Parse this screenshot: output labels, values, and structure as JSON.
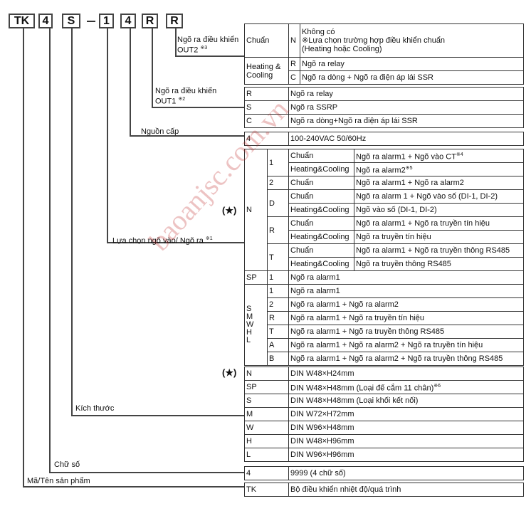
{
  "code": [
    "TK",
    "4",
    "S",
    "1",
    "4",
    "R",
    "R"
  ],
  "labels": {
    "out2": "Ngõ ra điều khiển",
    "out2_b": "OUT2",
    "out2_note": "※3",
    "out1": "Ngõ ra điều khiển",
    "out1_b": "OUT1",
    "out1_note": "※2",
    "power": "Nguồn cấp",
    "io": "Lựa chọn ngõ vào/ Ngõ ra",
    "io_note": "※1",
    "size": "Kích thước",
    "digits": "Chữ số",
    "product": "Mã/Tên sản phẩm",
    "star": "(★)"
  },
  "out2_table": {
    "standard": "Chuẩn",
    "n": "N",
    "n_line1": "Không có",
    "n_line2": "※Lựa chọn trường hợp điều khiển chuẩn",
    "n_line3": "(Heating hoặc Cooling)",
    "hc_line1": "Heating &",
    "hc_line2": "Cooling",
    "r": "R",
    "r_desc": "Ngõ ra relay",
    "c": "C",
    "c_desc": "Ngõ ra dòng + Ngõ ra điện áp lái SSR"
  },
  "out1_table": [
    {
      "code": "R",
      "desc": "Ngõ ra relay"
    },
    {
      "code": "S",
      "desc": "Ngõ ra SSRP"
    },
    {
      "code": "C",
      "desc": "Ngõ ra dòng+Ngõ ra điện áp lái SSR"
    }
  ],
  "power_table": {
    "code": "4",
    "desc": "100-240VAC 50/60Hz"
  },
  "io_table": {
    "n": "N",
    "std": "Chuẩn",
    "hc": "Heating&Cooling",
    "rows": {
      "c1": "1",
      "c1_std": "Ngõ ra alarm1 + Ngõ vào CT",
      "c1_std_note": "※4",
      "c1_hc": "Ngõ ra alarm2",
      "c1_hc_note": "※5",
      "c2": "2",
      "c2_std": "Ngõ ra alarm1 + Ngõ ra alarm2",
      "cD": "D",
      "cD_std": "Ngõ ra alarm 1 + Ngõ vào số (DI-1, DI-2)",
      "cD_hc": "Ngõ vào số (DI-1, DI-2)",
      "cR": "R",
      "cR_std": "Ngõ ra alarm1 + Ngõ ra truyền tín hiệu",
      "cR_hc": "Ngõ ra truyền tín hiệu",
      "cT": "T",
      "cT_std": "Ngõ ra alarm1 + Ngõ ra truyền thông RS485",
      "cT_hc": "Ngõ ra truyền thông RS485"
    },
    "sp": "SP",
    "sp_code": "1",
    "sp_desc": "Ngõ ra alarm1",
    "group_lines": [
      "S",
      "M",
      "W",
      "H",
      "L"
    ],
    "group_rows": [
      {
        "code": "1",
        "desc": "Ngõ ra alarm1"
      },
      {
        "code": "2",
        "desc": "Ngõ ra alarm1 + Ngõ ra alarm2"
      },
      {
        "code": "R",
        "desc": "Ngõ ra alarm1 + Ngõ ra truyền tín hiệu"
      },
      {
        "code": "T",
        "desc": "Ngõ ra alarm1 + Ngõ ra truyền thông RS485"
      },
      {
        "code": "A",
        "desc": "Ngõ ra alarm1 + Ngõ ra alarm2 + Ngõ ra truyền tín hiệu"
      },
      {
        "code": "B",
        "desc": "Ngõ ra alarm1 + Ngõ ra alarm2 + Ngõ ra truyền thông RS485"
      }
    ]
  },
  "size_table": [
    {
      "code": "N",
      "desc": "DIN W48×H24mm"
    },
    {
      "code": "SP",
      "desc": "DIN W48×H48mm (Loại đế cắm 11 chân)",
      "note": "※6"
    },
    {
      "code": "S",
      "desc": "DIN W48×H48mm (Loại khối kết nối)"
    },
    {
      "code": "M",
      "desc": "DIN W72×H72mm"
    },
    {
      "code": "W",
      "desc": "DIN W96×H48mm"
    },
    {
      "code": "H",
      "desc": "DIN W48×H96mm"
    },
    {
      "code": "L",
      "desc": "DIN W96×H96mm"
    }
  ],
  "digits_table": {
    "code": "4",
    "desc": "9999 (4 chữ số)"
  },
  "product_table": {
    "code": "TK",
    "desc": "Bộ điều khiển nhiệt độ/quá trình"
  },
  "watermark": "baoanjsc.com.vn"
}
